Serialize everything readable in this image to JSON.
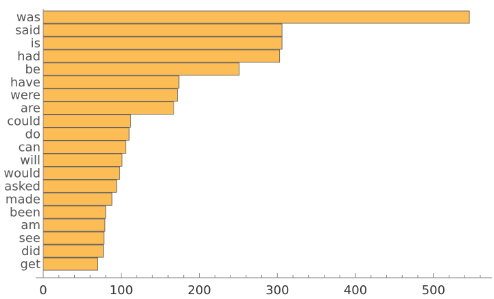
{
  "chart_data": {
    "type": "bar",
    "orientation": "horizontal",
    "categories": [
      "was",
      "said",
      "is",
      "had",
      "be",
      "have",
      "were",
      "are",
      "could",
      "do",
      "can",
      "will",
      "would",
      "asked",
      "made",
      "been",
      "am",
      "see",
      "did",
      "get"
    ],
    "values": [
      546,
      306,
      306,
      303,
      251,
      174,
      172,
      167,
      112,
      110,
      106,
      101,
      98,
      94,
      88,
      80,
      79,
      78,
      77,
      70
    ],
    "title": "",
    "xlabel": "",
    "ylabel": "",
    "xlim": [
      0,
      575
    ],
    "xticks": [
      0,
      100,
      200,
      300,
      400,
      500
    ],
    "minor_ticks": true,
    "grid": false,
    "bar_color": "#fdbd56",
    "bar_edge_color": "#4d4d4d"
  }
}
